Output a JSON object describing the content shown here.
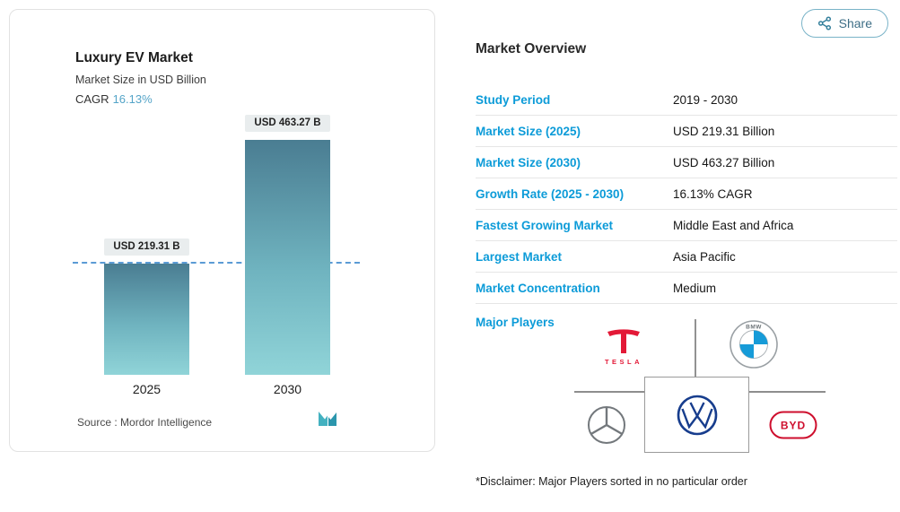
{
  "share": {
    "label": "Share",
    "icon": "share-nodes-icon"
  },
  "chart_card": {
    "cagr_label": "CAGR",
    "cagr_value": "16.13%",
    "source_text": "Source :  Mordor Intelligence",
    "logo_name": "mordor-intelligence-logo"
  },
  "chart_data": {
    "type": "bar",
    "title": "Luxury EV Market",
    "subtitle": "Market Size in USD Billion",
    "cagr": "16.13%",
    "categories": [
      "2025",
      "2030"
    ],
    "values": [
      219.31,
      463.27
    ],
    "value_unit": "USD Billion",
    "bar_labels": [
      "USD 219.31 B",
      "USD 463.27 B"
    ],
    "ylim": [
      0,
      463.27
    ],
    "reference_line_value": 219.31,
    "legend": "none",
    "grid": "off"
  },
  "overview": {
    "title": "Market Overview",
    "rows": [
      {
        "label": "Study Period",
        "value": "2019 - 2030"
      },
      {
        "label": "Market Size (2025)",
        "value": "USD 219.31 Billion"
      },
      {
        "label": "Market Size (2030)",
        "value": "USD 463.27 Billion"
      },
      {
        "label": "Growth Rate (2025 - 2030)",
        "value": "16.13% CAGR"
      },
      {
        "label": "Fastest Growing Market",
        "value": "Middle East and Africa"
      },
      {
        "label": "Largest Market",
        "value": "Asia Pacific"
      },
      {
        "label": "Market Concentration",
        "value": "Medium"
      }
    ],
    "major_players_label": "Major Players",
    "players": [
      {
        "name": "Tesla",
        "wordmark": "TESLA"
      },
      {
        "name": "BMW",
        "wordmark": "BMW"
      },
      {
        "name": "Mercedes-Benz",
        "wordmark": ""
      },
      {
        "name": "Volkswagen",
        "wordmark": ""
      },
      {
        "name": "BYD",
        "wordmark": "BYD"
      }
    ],
    "disclaimer": "*Disclaimer: Major Players sorted in no particular order"
  },
  "colors": {
    "link_blue": "#0c9bd8",
    "cagr_blue": "#54a4c8",
    "bar_gradient_top": "#4a7d92",
    "bar_gradient_bottom": "#90d4d8",
    "dashed_line": "#5b9bd5",
    "tesla_red": "#e31937",
    "byd_red": "#ce0e2d",
    "bmw_blue": "#169bd8",
    "vw_blue": "#173d8d"
  }
}
